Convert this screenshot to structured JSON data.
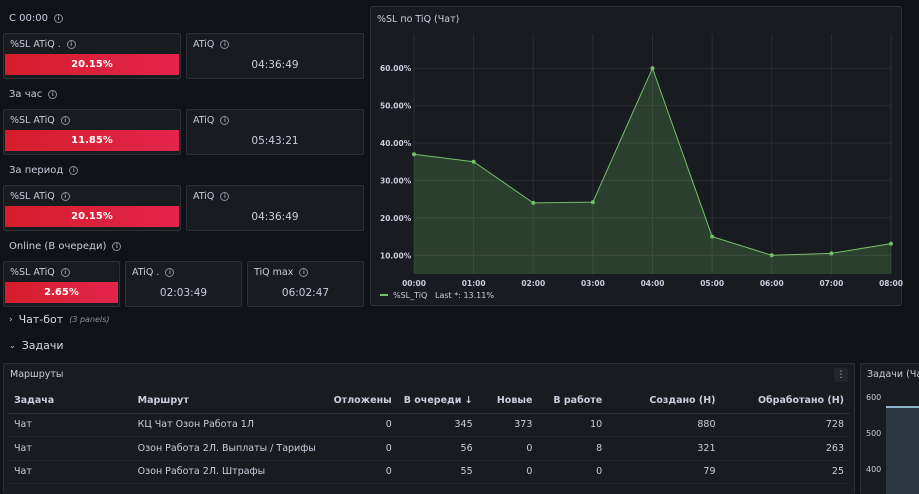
{
  "sections": {
    "since_midnight": "С 00:00",
    "per_hour": "За час",
    "per_period": "За период",
    "online": "Online (В очереди)"
  },
  "stats": {
    "r1_sl": {
      "title": "%SL ATiQ .",
      "value": "20.15%"
    },
    "r1_atiq": {
      "title": "ATiQ",
      "value": "04:36:49"
    },
    "r2_sl": {
      "title": "%SL ATiQ",
      "value": "11.85%"
    },
    "r2_atiq": {
      "title": "ATiQ",
      "value": "05:43:21"
    },
    "r3_sl": {
      "title": "%SL ATiQ",
      "value": "20.15%"
    },
    "r3_atiq": {
      "title": "ATiQ",
      "value": "04:36:49"
    },
    "r4_sl": {
      "title": "%SL ATiQ",
      "value": "2.65%"
    },
    "r4_atiq": {
      "title": "ATiQ .",
      "value": "02:03:49"
    },
    "r4_max": {
      "title": "TiQ max",
      "value": "06:02:47"
    }
  },
  "chart_panel": {
    "title": "%SL по TiQ (Чат)"
  },
  "chart_data": {
    "type": "area",
    "x": [
      "00:00",
      "01:00",
      "02:00",
      "03:00",
      "04:00",
      "05:00",
      "06:00",
      "07:00",
      "08:00"
    ],
    "series": [
      {
        "name": "%SL_TiQ",
        "values": [
          37.0,
          35.0,
          24.0,
          24.2,
          60.0,
          15.0,
          10.0,
          10.5,
          13.11
        ]
      }
    ],
    "y_ticks": [
      "10.00%",
      "20.00%",
      "30.00%",
      "40.00%",
      "50.00%",
      "60.00%"
    ],
    "ylim": [
      5,
      67
    ],
    "legend": {
      "label": "%SL_TiQ",
      "stat": "Last *: 13.11%"
    },
    "color": "#73bf69"
  },
  "rows": {
    "chatbot": {
      "label": "Чат-бот",
      "sub": "(3 panels)"
    },
    "tasks": {
      "label": "Задачи"
    }
  },
  "routes_panel": {
    "title": "Маршруты",
    "menu_glyph": "⋮",
    "columns": [
      "Задача",
      "Маршрут",
      "Отложены",
      "В очереди",
      "Новые",
      "В работе",
      "Создано (Н)",
      "Обработано (Н)"
    ],
    "sort_glyph": "↓",
    "rows": [
      [
        "Чат",
        "КЦ Чат Озон Работа 1Л",
        "0",
        "345",
        "373",
        "10",
        "880",
        "728"
      ],
      [
        "Чат",
        "Озон Работа 2Л. Выплаты / Тарифы",
        "0",
        "56",
        "0",
        "8",
        "321",
        "263"
      ],
      [
        "Чат",
        "Озон Работа 2Л. Штрафы",
        "0",
        "55",
        "0",
        "0",
        "79",
        "25"
      ]
    ]
  },
  "tasks_panel": {
    "title": "Задачи (Чат)",
    "y_ticks": [
      "600",
      "500",
      "400"
    ]
  }
}
